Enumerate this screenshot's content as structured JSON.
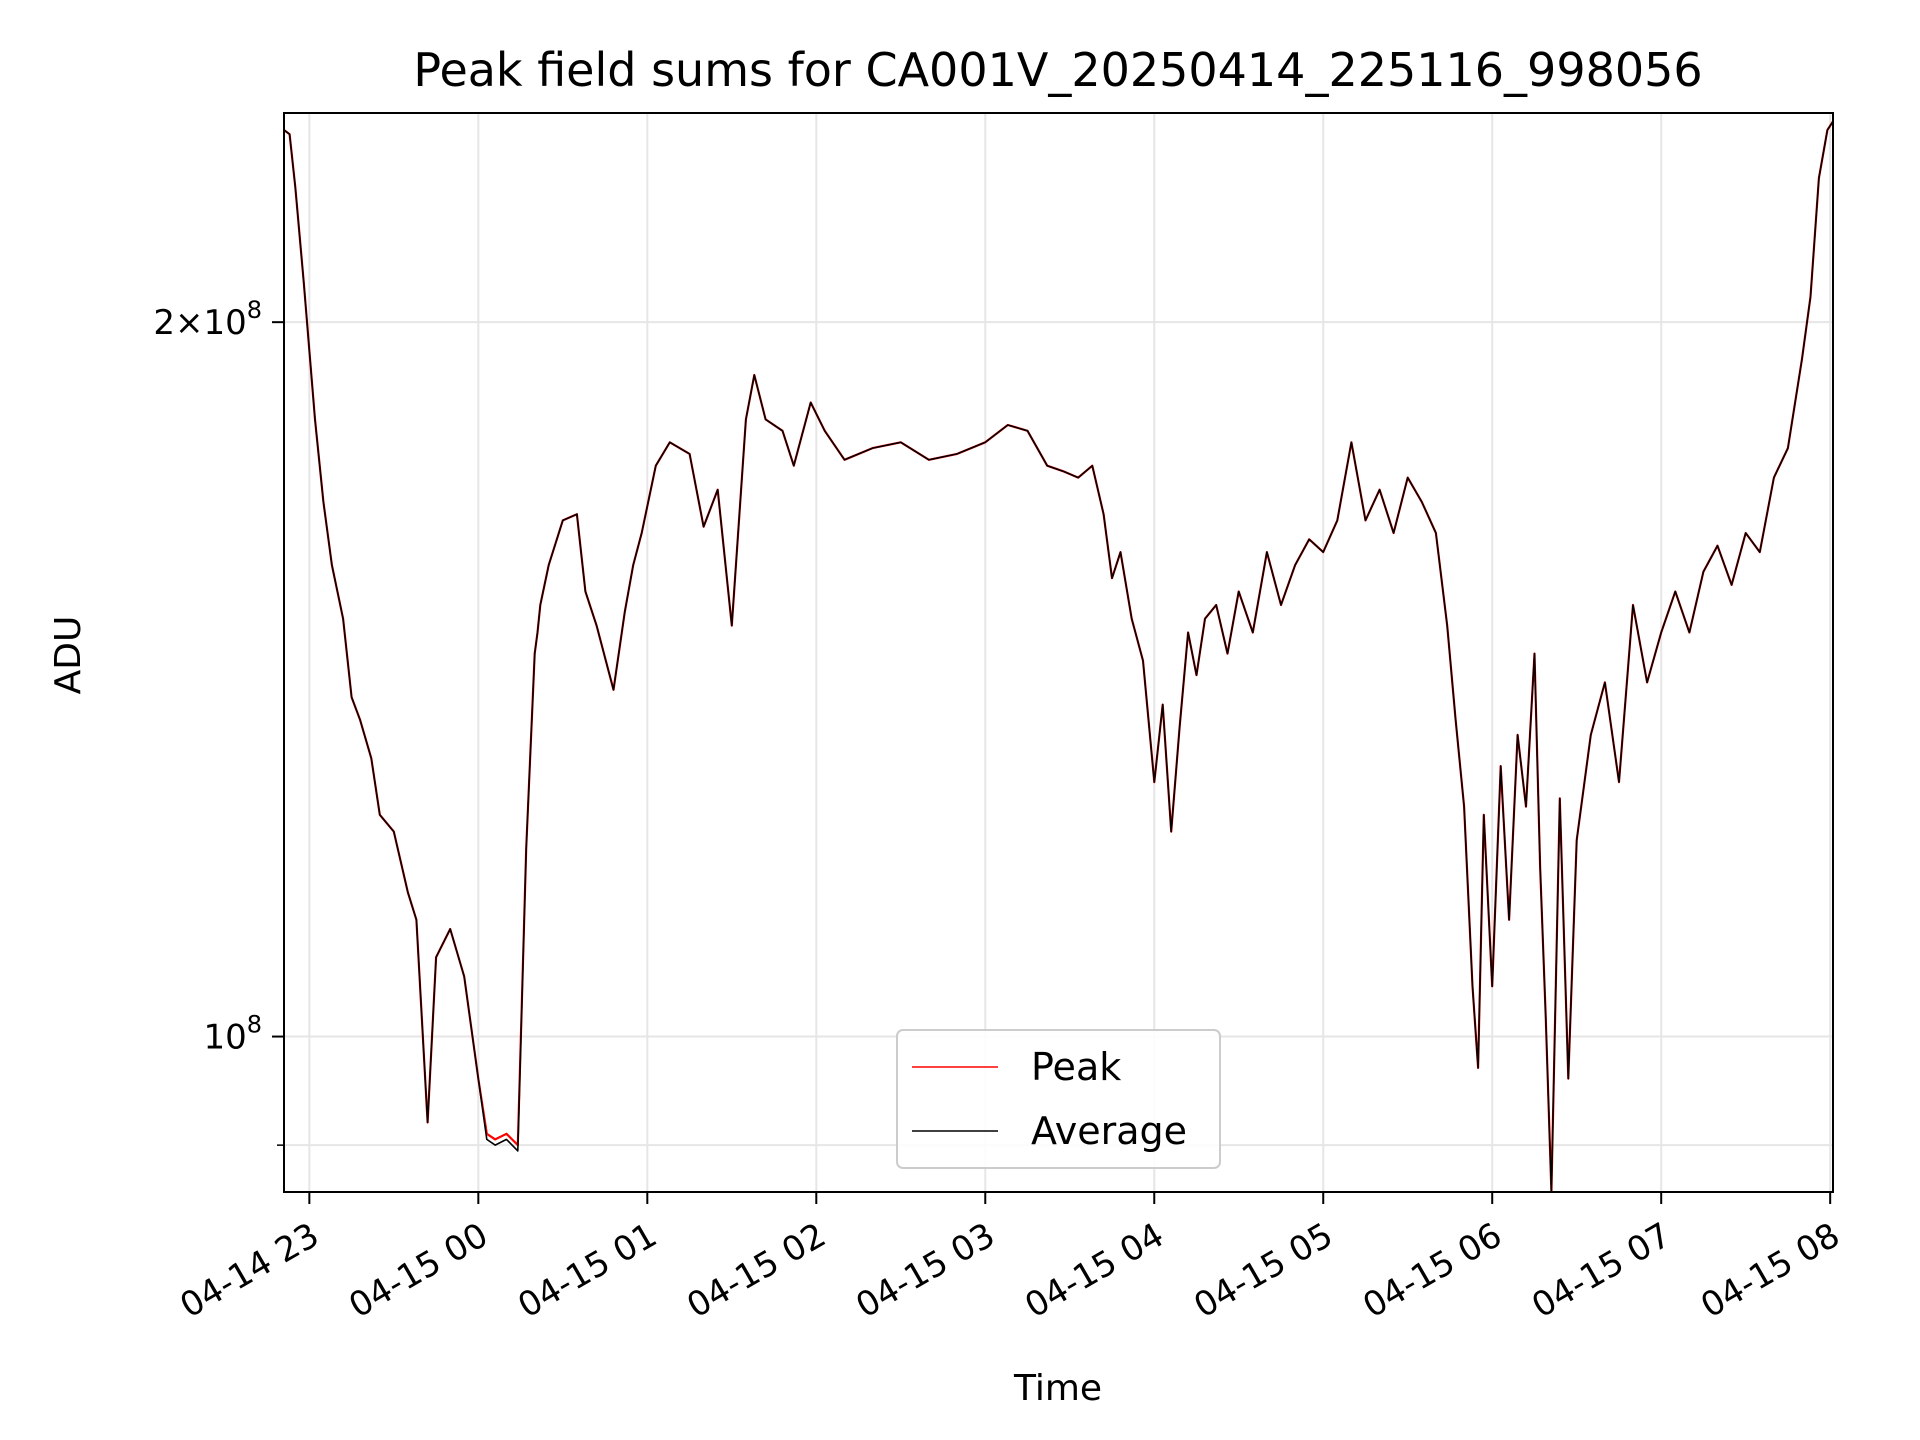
{
  "chart_data": {
    "type": "line",
    "title": "Peak field sums for CA001V_20250414_225116_998056",
    "xlabel": "Time",
    "ylabel": "ADU",
    "yscale": "log",
    "ylim": [
      86000000,
      245000000
    ],
    "xlim": [
      "04-14 22:51",
      "04-15 08:01"
    ],
    "x_tick_labels": [
      "04-14 23",
      "04-15 00",
      "04-15 01",
      "04-15 02",
      "04-15 03",
      "04-15 04",
      "04-15 05",
      "04-15 06",
      "04-15 07",
      "04-15 08"
    ],
    "y_tick_labels": [
      {
        "value": 100000000,
        "mantissa": "",
        "exponent": "8",
        "base": "10"
      },
      {
        "value": 200000000,
        "mantissa": "2",
        "exponent": "8",
        "base": "10"
      }
    ],
    "y_minor_ticks": [
      90000000
    ],
    "grid": true,
    "legend_position": "lower-center",
    "x": [
      "04-14 22:51",
      "04-14 22:53",
      "04-14 22:55",
      "04-14 22:58",
      "04-14 23:02",
      "04-14 23:05",
      "04-14 23:08",
      "04-14 23:12",
      "04-14 23:15",
      "04-14 23:18",
      "04-14 23:22",
      "04-14 23:25",
      "04-14 23:30",
      "04-14 23:35",
      "04-14 23:38",
      "04-14 23:42",
      "04-14 23:45",
      "04-14 23:50",
      "04-14 23:55",
      "04-15 00:00",
      "04-15 00:03",
      "04-15 00:06",
      "04-15 00:10",
      "04-15 00:14",
      "04-15 00:17",
      "04-15 00:20",
      "04-15 00:21",
      "04-15 00:22",
      "04-15 00:25",
      "04-15 00:30",
      "04-15 00:35",
      "04-15 00:38",
      "04-15 00:42",
      "04-15 00:48",
      "04-15 00:52",
      "04-15 00:55",
      "04-15 00:58",
      "04-15 01:03",
      "04-15 01:08",
      "04-15 01:15",
      "04-15 01:20",
      "04-15 01:25",
      "04-15 01:30",
      "04-15 01:35",
      "04-15 01:38",
      "04-15 01:42",
      "04-15 01:48",
      "04-15 01:52",
      "04-15 01:58",
      "04-15 02:03",
      "04-15 02:10",
      "04-15 02:20",
      "04-15 02:30",
      "04-15 02:40",
      "04-15 02:50",
      "04-15 03:00",
      "04-15 03:08",
      "04-15 03:15",
      "04-15 03:22",
      "04-15 03:28",
      "04-15 03:33",
      "04-15 03:38",
      "04-15 03:42",
      "04-15 03:45",
      "04-15 03:48",
      "04-15 03:52",
      "04-15 03:56",
      "04-15 04:00",
      "04-15 04:03",
      "04-15 04:06",
      "04-15 04:09",
      "04-15 04:12",
      "04-15 04:15",
      "04-15 04:18",
      "04-15 04:22",
      "04-15 04:26",
      "04-15 04:30",
      "04-15 04:35",
      "04-15 04:40",
      "04-15 04:45",
      "04-15 04:50",
      "04-15 04:55",
      "04-15 05:00",
      "04-15 05:05",
      "04-15 05:10",
      "04-15 05:15",
      "04-15 05:20",
      "04-15 05:25",
      "04-15 05:30",
      "04-15 05:35",
      "04-15 05:40",
      "04-15 05:44",
      "04-15 05:47",
      "04-15 05:50",
      "04-15 05:53",
      "04-15 05:55",
      "04-15 05:57",
      "04-15 06:00",
      "04-15 06:03",
      "04-15 06:06",
      "04-15 06:09",
      "04-15 06:12",
      "04-15 06:15",
      "04-15 06:17",
      "04-15 06:19",
      "04-15 06:21",
      "04-15 06:24",
      "04-15 06:27",
      "04-15 06:30",
      "04-15 06:35",
      "04-15 06:40",
      "04-15 06:45",
      "04-15 06:50",
      "04-15 06:55",
      "04-15 07:00",
      "04-15 07:05",
      "04-15 07:10",
      "04-15 07:15",
      "04-15 07:20",
      "04-15 07:25",
      "04-15 07:30",
      "04-15 07:35",
      "04-15 07:40",
      "04-15 07:45",
      "04-15 07:50",
      "04-15 07:53",
      "04-15 07:56",
      "04-15 07:59",
      "04-15 08:01"
    ],
    "series": [
      {
        "name": "Peak",
        "color": "#ff0000",
        "values": [
          241000000,
          240000000,
          228000000,
          208000000,
          182000000,
          168000000,
          158000000,
          150000000,
          139000000,
          136000000,
          131000000,
          124000000,
          122000000,
          115000000,
          112000000,
          92000000,
          108000000,
          111000000,
          106000000,
          96000000,
          91000000,
          90500000,
          91000000,
          90000000,
          120000000,
          145000000,
          148000000,
          152000000,
          158000000,
          165000000,
          166000000,
          154000000,
          149000000,
          140000000,
          151000000,
          158000000,
          163000000,
          174000000,
          178000000,
          176000000,
          164000000,
          170000000,
          149000000,
          182000000,
          190000000,
          182000000,
          180000000,
          174000000,
          185000000,
          180000000,
          175000000,
          177000000,
          178000000,
          175000000,
          176000000,
          178000000,
          181000000,
          180000000,
          174000000,
          173000000,
          172000000,
          174000000,
          166000000,
          156000000,
          160000000,
          150000000,
          144000000,
          128000000,
          138000000,
          122000000,
          135000000,
          148000000,
          142000000,
          150000000,
          152000000,
          145000000,
          154000000,
          148000000,
          160000000,
          152000000,
          158000000,
          162000000,
          160000000,
          165000000,
          178000000,
          165000000,
          170000000,
          163000000,
          172000000,
          168000000,
          163000000,
          149000000,
          136000000,
          125000000,
          105000000,
          97000000,
          124000000,
          105000000,
          130000000,
          112000000,
          134000000,
          125000000,
          145000000,
          118000000,
          102000000,
          86000000,
          126000000,
          96000000,
          121000000,
          134000000,
          141000000,
          128000000,
          152000000,
          141000000,
          148000000,
          154000000,
          148000000,
          157000000,
          161000000,
          155000000,
          163000000,
          160000000,
          172000000,
          177000000,
          193000000,
          205000000,
          230000000,
          241000000,
          243000000
        ]
      },
      {
        "name": "Average",
        "color": "#000000",
        "values": [
          241000000,
          240000000,
          228000000,
          208000000,
          182000000,
          168000000,
          158000000,
          150000000,
          139000000,
          136000000,
          131000000,
          124000000,
          122000000,
          115000000,
          112000000,
          92000000,
          108000000,
          111000000,
          106000000,
          96000000,
          90500000,
          90000000,
          90500000,
          89500000,
          120000000,
          145000000,
          148000000,
          152000000,
          158000000,
          165000000,
          166000000,
          154000000,
          149000000,
          140000000,
          151000000,
          158000000,
          163000000,
          174000000,
          178000000,
          176000000,
          164000000,
          170000000,
          149000000,
          182000000,
          190000000,
          182000000,
          180000000,
          174000000,
          185000000,
          180000000,
          175000000,
          177000000,
          178000000,
          175000000,
          176000000,
          178000000,
          181000000,
          180000000,
          174000000,
          173000000,
          172000000,
          174000000,
          166000000,
          156000000,
          160000000,
          150000000,
          144000000,
          128000000,
          138000000,
          122000000,
          135000000,
          148000000,
          142000000,
          150000000,
          152000000,
          145000000,
          154000000,
          148000000,
          160000000,
          152000000,
          158000000,
          162000000,
          160000000,
          165000000,
          178000000,
          165000000,
          170000000,
          163000000,
          172000000,
          168000000,
          163000000,
          149000000,
          136000000,
          125000000,
          105000000,
          97000000,
          124000000,
          105000000,
          130000000,
          112000000,
          134000000,
          125000000,
          145000000,
          118000000,
          102000000,
          86000000,
          126000000,
          96000000,
          121000000,
          134000000,
          141000000,
          128000000,
          152000000,
          141000000,
          148000000,
          154000000,
          148000000,
          157000000,
          161000000,
          155000000,
          163000000,
          160000000,
          172000000,
          177000000,
          193000000,
          205000000,
          230000000,
          241000000,
          243000000
        ]
      }
    ]
  }
}
